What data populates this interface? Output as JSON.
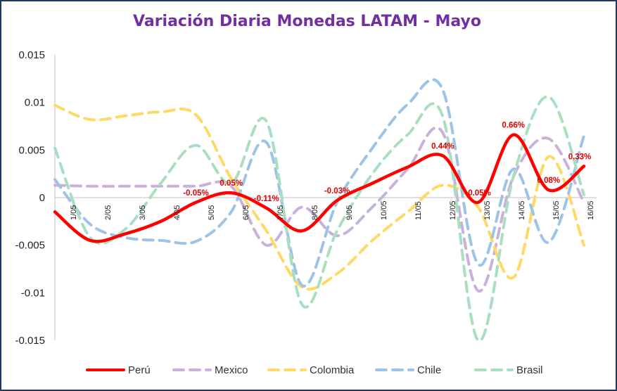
{
  "title": "Variación Diaria Monedas LATAM - Mayo",
  "chart_data": {
    "type": "line",
    "title": "Variación Diaria Monedas LATAM - Mayo",
    "categories": [
      "1/05",
      "2/05",
      "3/05",
      "4/05",
      "5/05",
      "6/05",
      "7/05",
      "8/05",
      "9/05",
      "10/05",
      "11/05",
      "12/05",
      "13/05",
      "14/05",
      "15/05",
      "16/05"
    ],
    "y_ticks": [
      "0.015",
      "0.01",
      "0.005",
      "0",
      "-0.005",
      "-0.01",
      "-0.015"
    ],
    "ylim": [
      -0.015,
      0.015
    ],
    "grid": false,
    "legend_position": "bottom",
    "series": [
      {
        "name": "Perú",
        "color": "#ff0000",
        "dashed": false,
        "values": [
          -0.0015,
          -0.0045,
          -0.0038,
          -0.0025,
          -0.0005,
          0.0005,
          -0.0011,
          -0.0035,
          -0.0003,
          0.0015,
          0.0032,
          0.0044,
          -0.0005,
          0.0066,
          0.0008,
          0.0033
        ],
        "labels": [
          "",
          "",
          "",
          "",
          "-0.05%",
          "0.05%",
          "-0.11%",
          "",
          "-0.03%",
          "",
          "",
          "0.44%",
          "-0.05%",
          "0.66%",
          "0.08%",
          "0.33%"
        ]
      },
      {
        "name": "Mexico",
        "color": "#c9b1d9",
        "dashed": true,
        "values": [
          0.0013,
          0.0012,
          0.0012,
          0.0012,
          0.0012,
          0.0012,
          -0.005,
          -0.001,
          -0.004,
          -0.001,
          0.003,
          0.0068,
          -0.0098,
          0.0022,
          0.0062,
          -0.0005
        ]
      },
      {
        "name": "Colombia",
        "color": "#ffd966",
        "dashed": true,
        "values": [
          0.0097,
          0.0082,
          0.0086,
          0.009,
          0.0087,
          0.002,
          -0.0035,
          -0.0094,
          -0.008,
          -0.0045,
          -0.0015,
          0.0013,
          -0.001,
          -0.0084,
          0.0043,
          -0.005
        ]
      },
      {
        "name": "Chile",
        "color": "#9dc3e6",
        "dashed": true,
        "values": [
          0.0019,
          -0.0028,
          -0.0042,
          -0.0045,
          -0.0046,
          -0.0015,
          0.0058,
          -0.0092,
          -0.0005,
          0.0052,
          0.0098,
          0.0113,
          -0.007,
          0.003,
          -0.0047,
          0.0065
        ]
      },
      {
        "name": "Brasil",
        "color": "#a9dfbf",
        "dashed": true,
        "values": [
          0.0052,
          -0.0042,
          -0.0033,
          0.0015,
          0.0055,
          0.0015,
          0.008,
          -0.0112,
          -0.0035,
          0.0025,
          0.0066,
          0.0085,
          -0.015,
          0.0022,
          0.0106,
          0.0003
        ]
      }
    ]
  }
}
